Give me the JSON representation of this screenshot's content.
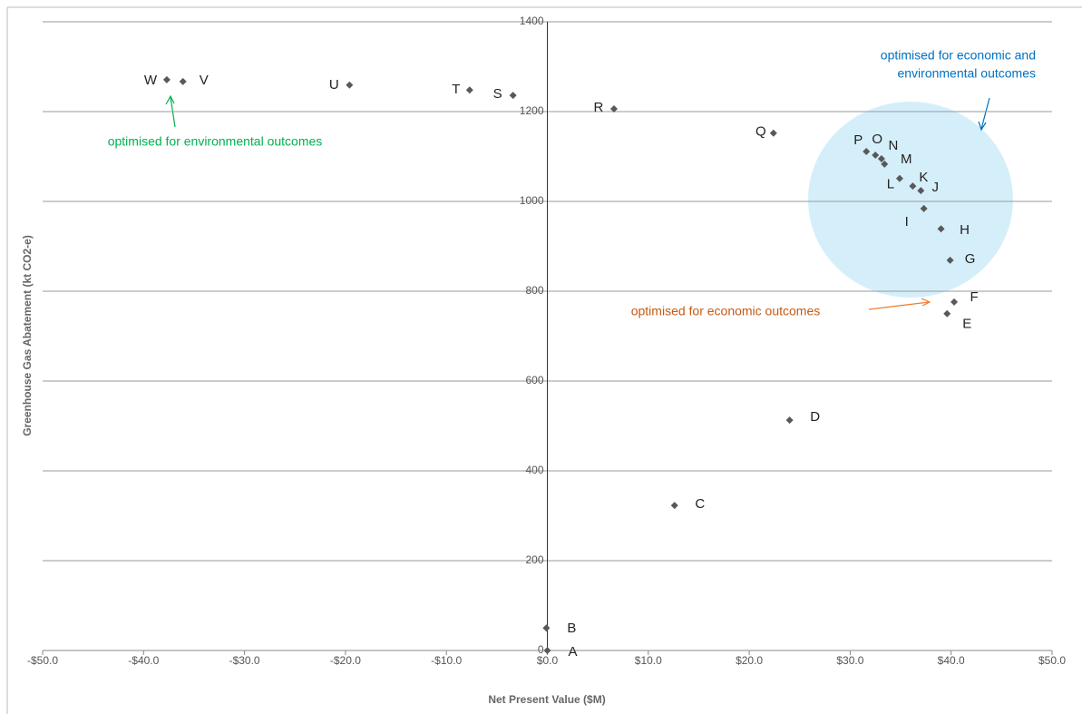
{
  "chart_data": {
    "type": "scatter",
    "x_label": "Net Present Value ($M)",
    "y_label": "Greenhouse Gas Abatement (kt CO2-e)",
    "point_labels": [
      "A",
      "B",
      "C",
      "D",
      "E",
      "F",
      "G",
      "H",
      "I",
      "J",
      "K",
      "L",
      "M",
      "N",
      "O",
      "P",
      "Q",
      "R",
      "S",
      "T",
      "U",
      "V",
      "W"
    ],
    "x": [
      0,
      -0.1,
      12.6,
      24.0,
      39.6,
      40.3,
      39.9,
      39.0,
      37.3,
      37.0,
      36.2,
      34.9,
      33.4,
      33.1,
      32.5,
      31.6,
      22.4,
      6.6,
      -3.4,
      -7.7,
      -19.6,
      -36.1,
      -37.7
    ],
    "y": [
      0,
      50,
      323,
      513,
      750,
      776,
      869,
      939,
      984,
      1024,
      1034,
      1051,
      1083,
      1095,
      1103,
      1111,
      1152,
      1206,
      1236,
      1248,
      1259,
      1267,
      1271
    ],
    "color": "#595959",
    "xlim": [
      -50,
      50
    ],
    "ylim": [
      0,
      1400
    ],
    "xticks": [
      {
        "value": -50,
        "label": "-$50.0"
      },
      {
        "value": -40,
        "label": "-$40.0"
      },
      {
        "value": -30,
        "label": "-$30.0"
      },
      {
        "value": -20,
        "label": "-$20.0"
      },
      {
        "value": -10,
        "label": "-$10.0"
      },
      {
        "value": 0,
        "label": "$0.0"
      },
      {
        "value": 10,
        "label": "$10.0"
      },
      {
        "value": 20,
        "label": "$20.0"
      },
      {
        "value": 30,
        "label": "$30.0"
      },
      {
        "value": 40,
        "label": "$40.0"
      },
      {
        "value": 50,
        "label": "$50.0"
      }
    ],
    "yticks": [
      0,
      200,
      400,
      600,
      800,
      1000,
      1200,
      1400
    ],
    "negative_tick_color": "#ff0000",
    "grid": true,
    "annotations": [
      {
        "text": [
          "optimised for environmental outcomes"
        ],
        "color": "#00b050"
      },
      {
        "text": [
          "optimised for economic and",
          "environmental outcomes"
        ],
        "color": "#0070c0"
      },
      {
        "text": [
          "optimised for economic outcomes"
        ],
        "color": "#c55a11"
      }
    ]
  }
}
